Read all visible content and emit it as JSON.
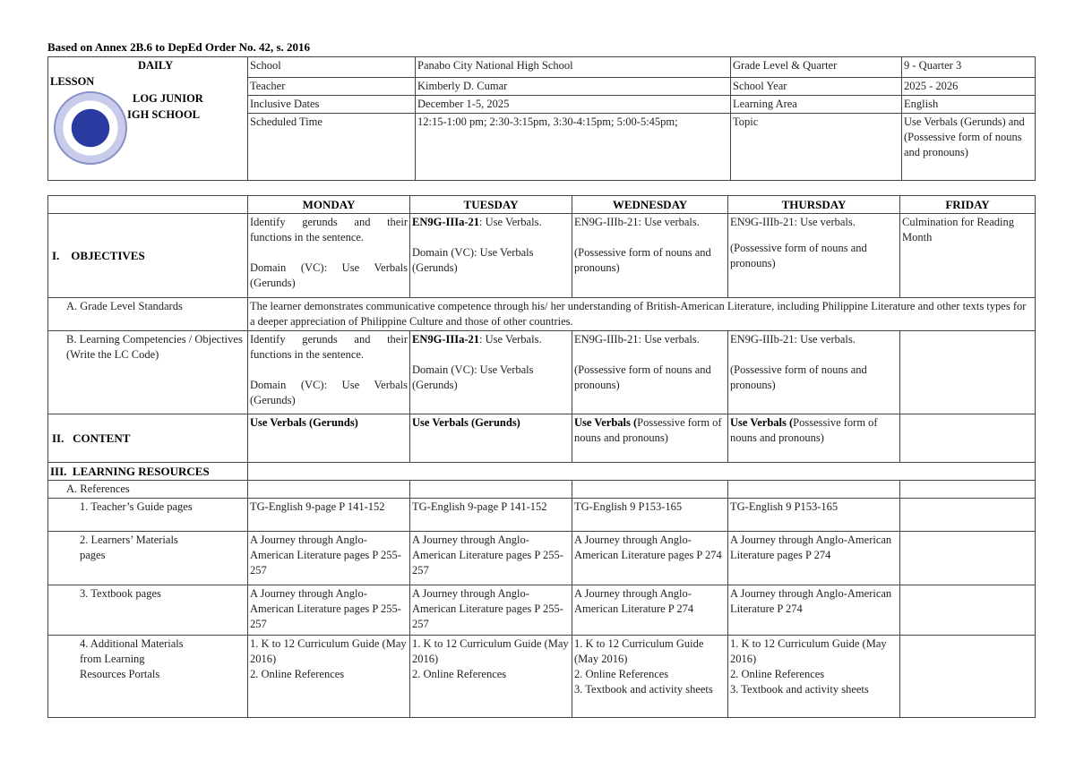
{
  "caption": "Based on Annex 2B.6 to DepEd Order No. 42, s. 2016",
  "header": {
    "title": [
      "DAILY",
      "LESSON",
      "LOG JUNIOR",
      "IGH SCHOOL"
    ],
    "logo": "DepEd seal (Kagawaran ng Edukasyon)",
    "rows": [
      {
        "label": "School",
        "value": "Panabo City National High School",
        "label2": "Grade Level & Quarter",
        "value2": "9 - Quarter 3"
      },
      {
        "label": "Teacher",
        "value": "Kimberly D. Cumar",
        "label2": "School Year",
        "value2": "2025 - 2026"
      },
      {
        "label": "Inclusive Dates",
        "value": "December 1-5, 2025",
        "label2": "Learning Area",
        "value2": "English"
      },
      {
        "label": "Scheduled Time",
        "value": "12:15-1:00 pm; 2:30-3:15pm, 3:30-4:15pm; 5:00-5:45pm;",
        "label2": "Topic",
        "value2": "Use Verbals (Gerunds) and (Possessive form of nouns and pronouns)"
      }
    ]
  },
  "days": [
    "MONDAY",
    "TUESDAY",
    "WEDNESDAY",
    "THURSDAY",
    "FRIDAY"
  ],
  "objectives": {
    "label": "I.    OBJECTIVES",
    "mon": [
      "Identify gerunds and their functions in the sentence.",
      "Domain (VC): Use Verbals (Gerunds)"
    ],
    "tue": [
      "EN9G-IIIa-21",
      ": Use Verbals.",
      "Domain (VC): Use Verbals (Gerunds)"
    ],
    "wed": [
      "EN9G-IIIb-21: Use verbals.",
      "(Possessive form of nouns and pronouns)"
    ],
    "thu": [
      "EN9G-IIIb-21: Use verbals.",
      "(Possessive form of nouns and pronouns)"
    ],
    "fri": "Culmination for Reading Month"
  },
  "gls": {
    "label": "A. Grade Level Standards",
    "text": "The learner demonstrates communicative competence through his/ her understanding of British-American Literature, including Philippine Literature and other texts types for a deeper appreciation of Philippine Culture and those of other countries."
  },
  "lc": {
    "label": "B. Learning Competencies / Objectives (Write the LC Code)",
    "mon": [
      "Identify gerunds and their functions in the sentence.",
      "Domain (VC): Use Verbals (Gerunds)"
    ],
    "tue": [
      "EN9G-IIIa-21",
      ": Use Verbals.",
      "Domain (VC): Use Verbals (Gerunds)"
    ],
    "wed": [
      "EN9G-IIIb-21: Use verbals.",
      "(Possessive form of nouns and pronouns)"
    ],
    "thu": [
      "EN9G-IIIb-21: Use verbals.",
      "(Possessive form of nouns and pronouns)"
    ]
  },
  "content": {
    "label": "II.   CONTENT",
    "mon": "Use Verbals (Gerunds)",
    "tue": "Use Verbals (Gerunds)",
    "wed": [
      "Use Verbals (",
      "Possessive form of nouns and pronouns)"
    ],
    "thu": [
      "Use Verbals (",
      "Possessive form of nouns and pronouns)"
    ]
  },
  "resources": {
    "label": "III.  LEARNING RESOURCES",
    "refs": "A. References",
    "rows": [
      {
        "label": "1. Teacher’s Guide pages",
        "mon": "TG-English 9-page P 141-152",
        "tue": "TG-English 9-page P 141-152",
        "wed": "TG-English 9 P153-165",
        "thu": "TG-English 9 P153-165"
      },
      {
        "label": "2. Learners’ Materials pages",
        "mon": "A Journey through Anglo-American Literature pages P 255-257",
        "tue": "A Journey through Anglo-American Literature pages P 255-257",
        "wed": "A Journey through Anglo-American Literature pages P 274",
        "thu": "A Journey through Anglo-American Literature pages P 274"
      },
      {
        "label": "3. Textbook pages",
        "mon": "A Journey through Anglo-American Literature pages P 255-257",
        "tue": "A Journey through Anglo-American Literature pages P 255-257",
        "wed": "A Journey through Anglo-American Literature P 274",
        "thu": "A Journey through Anglo-American Literature P 274"
      }
    ],
    "additional": {
      "label": "4. Additional Materials from Learning Resources Portals",
      "mon": [
        "1. K to 12 Curriculum Guide (May 2016)",
        "2. Online References"
      ],
      "tue": [
        "1. K to 12 Curriculum Guide (May 2016)",
        "2. Online References"
      ],
      "wed": [
        "1. K to 12 Curriculum Guide (May 2016)",
        "2. Online References",
        "3. Textbook and activity sheets"
      ],
      "thu": [
        "1. K to 12 Curriculum Guide (May 2016)",
        "2. Online References",
        "3. Textbook and activity sheets"
      ]
    }
  }
}
